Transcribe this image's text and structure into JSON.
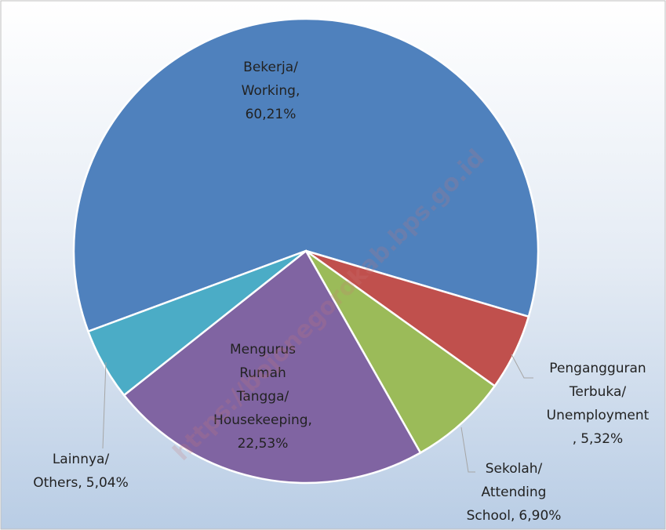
{
  "chart_data": {
    "type": "pie",
    "categories": [
      "Bekerja/ Working",
      "Pengangguran Terbuka/ Unemployment",
      "Sekolah/ Attending School",
      "Mengurus Rumah Tangga/ Housekeeping",
      "Lainnya/ Others"
    ],
    "values": [
      60.21,
      5.32,
      6.9,
      22.53,
      5.04
    ],
    "value_labels": [
      "60,21%",
      "5,32%",
      "6,90%",
      "22,53%",
      "5,04%"
    ],
    "label_separator": ",",
    "colors": [
      "#4f81bd",
      "#c0504d",
      "#9bbb59",
      "#8064a2",
      "#4bacc6"
    ],
    "watermark": "https://bojonegorokab.bps.go.id"
  }
}
